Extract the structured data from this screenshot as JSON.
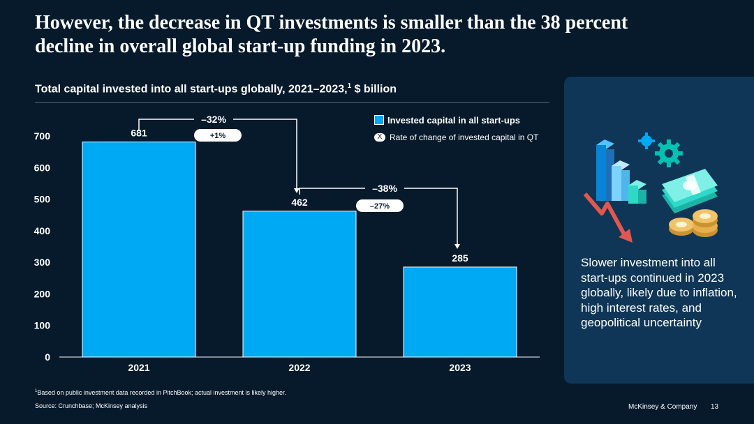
{
  "title": "However, the decrease in QT investments is smaller than the 38 percent decline in overall global start-up funding in 2023.",
  "subtitle": {
    "text": "Total capital invested into all start-ups globally, 2021–2023,",
    "sup": "1",
    "unit": " $ billion"
  },
  "legend": {
    "bar_label": "Invested capital in all start-ups",
    "pill_symbol": "X",
    "pill_label": "Rate of change of invested capital in QT"
  },
  "chart_data": {
    "type": "bar",
    "categories": [
      "2021",
      "2022",
      "2023"
    ],
    "values": [
      681,
      462,
      285
    ],
    "value_labels": [
      "681",
      "462",
      "285"
    ],
    "ylim": [
      0,
      700
    ],
    "yticks": [
      0,
      100,
      200,
      300,
      400,
      500,
      600,
      700
    ],
    "bar_color": "#00a9f4",
    "annotations": [
      {
        "from": 0,
        "to": 1,
        "change": "–32%",
        "qt_change": "+1%"
      },
      {
        "from": 1,
        "to": 2,
        "change": "–38%",
        "qt_change": "–27%"
      }
    ]
  },
  "panel": {
    "text": "Slower investment into all start-ups continued in 2023 globally, likely due to inflation, high interest rates, and geopolitical uncertainty"
  },
  "footnote": {
    "sup": "1",
    "text": "Based on public investment data recorded in PitchBook; actual investment is likely higher."
  },
  "source": "Source: Crunchbase; McKinsey analysis",
  "brand": "McKinsey & Company",
  "page_number": "13"
}
